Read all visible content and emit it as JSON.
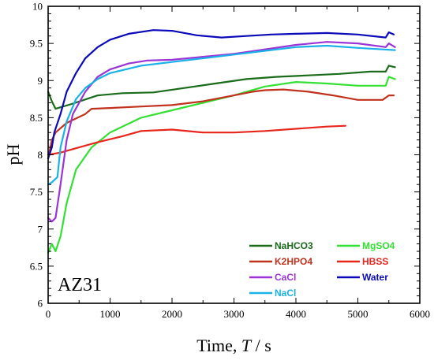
{
  "chart_data": {
    "type": "line",
    "xlabel_prefix": "Time, ",
    "xlabel_var": "T",
    "xlabel_suffix": " / s",
    "ylabel": "pH",
    "xlim": [
      0,
      6000
    ],
    "ylim": [
      6,
      10
    ],
    "xticks": [
      0,
      1000,
      2000,
      3000,
      4000,
      5000,
      6000
    ],
    "yticks": [
      6,
      6.5,
      7,
      7.5,
      8,
      8.5,
      9,
      9.5,
      10
    ],
    "grid": false,
    "legend_position": "bottom-right",
    "annotation": "AZ31",
    "series": [
      {
        "name": "NaHCO3",
        "color": "#1a6b1a",
        "points": [
          [
            0,
            8.85
          ],
          [
            60,
            8.72
          ],
          [
            120,
            8.62
          ],
          [
            400,
            8.69
          ],
          [
            800,
            8.8
          ],
          [
            1200,
            8.83
          ],
          [
            1700,
            8.84
          ],
          [
            2200,
            8.9
          ],
          [
            2700,
            8.96
          ],
          [
            3200,
            9.02
          ],
          [
            3700,
            9.05
          ],
          [
            4200,
            9.07
          ],
          [
            4700,
            9.09
          ],
          [
            5200,
            9.12
          ],
          [
            5450,
            9.12
          ],
          [
            5500,
            9.2
          ],
          [
            5600,
            9.18
          ]
        ]
      },
      {
        "name": "MgSO4",
        "color": "#33e033",
        "points": [
          [
            0,
            6.68
          ],
          [
            60,
            6.8
          ],
          [
            120,
            6.7
          ],
          [
            200,
            6.9
          ],
          [
            300,
            7.35
          ],
          [
            450,
            7.8
          ],
          [
            700,
            8.1
          ],
          [
            1000,
            8.3
          ],
          [
            1500,
            8.5
          ],
          [
            2000,
            8.6
          ],
          [
            2500,
            8.7
          ],
          [
            3000,
            8.8
          ],
          [
            3500,
            8.92
          ],
          [
            4000,
            8.98
          ],
          [
            4500,
            8.96
          ],
          [
            5000,
            8.93
          ],
          [
            5450,
            8.93
          ],
          [
            5500,
            9.05
          ],
          [
            5600,
            9.02
          ]
        ]
      },
      {
        "name": "K2HPO4",
        "color": "#c0321e",
        "points": [
          [
            0,
            7.95
          ],
          [
            60,
            8.2
          ],
          [
            120,
            8.3
          ],
          [
            300,
            8.43
          ],
          [
            600,
            8.55
          ],
          [
            700,
            8.62
          ],
          [
            1000,
            8.63
          ],
          [
            1500,
            8.65
          ],
          [
            2000,
            8.67
          ],
          [
            2500,
            8.72
          ],
          [
            3000,
            8.8
          ],
          [
            3300,
            8.85
          ],
          [
            3500,
            8.87
          ],
          [
            3800,
            8.88
          ],
          [
            4200,
            8.85
          ],
          [
            4600,
            8.8
          ],
          [
            5000,
            8.74
          ],
          [
            5400,
            8.74
          ],
          [
            5500,
            8.8
          ],
          [
            5580,
            8.8
          ]
        ]
      },
      {
        "name": "HBSS",
        "color": "#e8251b",
        "points": [
          [
            0,
            8.0
          ],
          [
            200,
            8.03
          ],
          [
            500,
            8.1
          ],
          [
            800,
            8.17
          ],
          [
            1200,
            8.25
          ],
          [
            1500,
            8.32
          ],
          [
            2000,
            8.34
          ],
          [
            2500,
            8.3
          ],
          [
            3000,
            8.3
          ],
          [
            3500,
            8.32
          ],
          [
            4000,
            8.35
          ],
          [
            4500,
            8.38
          ],
          [
            4800,
            8.39
          ]
        ]
      },
      {
        "name": "CaCl",
        "color": "#9b34d6",
        "points": [
          [
            0,
            7.15
          ],
          [
            60,
            7.1
          ],
          [
            120,
            7.15
          ],
          [
            200,
            7.6
          ],
          [
            300,
            8.2
          ],
          [
            400,
            8.55
          ],
          [
            600,
            8.85
          ],
          [
            800,
            9.05
          ],
          [
            1000,
            9.15
          ],
          [
            1300,
            9.23
          ],
          [
            1600,
            9.27
          ],
          [
            2000,
            9.28
          ],
          [
            2500,
            9.32
          ],
          [
            3000,
            9.36
          ],
          [
            3500,
            9.42
          ],
          [
            4000,
            9.48
          ],
          [
            4500,
            9.52
          ],
          [
            5000,
            9.5
          ],
          [
            5450,
            9.45
          ],
          [
            5500,
            9.5
          ],
          [
            5600,
            9.45
          ]
        ]
      },
      {
        "name": "Water",
        "color": "#0a0ab8",
        "points": [
          [
            0,
            7.95
          ],
          [
            60,
            8.1
          ],
          [
            100,
            8.3
          ],
          [
            200,
            8.55
          ],
          [
            300,
            8.85
          ],
          [
            450,
            9.1
          ],
          [
            600,
            9.3
          ],
          [
            800,
            9.45
          ],
          [
            1000,
            9.55
          ],
          [
            1300,
            9.63
          ],
          [
            1700,
            9.68
          ],
          [
            2000,
            9.67
          ],
          [
            2400,
            9.61
          ],
          [
            2800,
            9.58
          ],
          [
            3200,
            9.6
          ],
          [
            3600,
            9.62
          ],
          [
            4000,
            9.63
          ],
          [
            4500,
            9.64
          ],
          [
            5000,
            9.62
          ],
          [
            5450,
            9.58
          ],
          [
            5500,
            9.65
          ],
          [
            5580,
            9.62
          ]
        ]
      },
      {
        "name": "NaCl",
        "color": "#1ab1e8",
        "points": [
          [
            0,
            7.6
          ],
          [
            60,
            7.63
          ],
          [
            150,
            7.7
          ],
          [
            200,
            8.1
          ],
          [
            300,
            8.45
          ],
          [
            450,
            8.75
          ],
          [
            600,
            8.9
          ],
          [
            800,
            9.02
          ],
          [
            1000,
            9.1
          ],
          [
            1500,
            9.2
          ],
          [
            2000,
            9.25
          ],
          [
            2500,
            9.3
          ],
          [
            3000,
            9.35
          ],
          [
            3500,
            9.4
          ],
          [
            4000,
            9.45
          ],
          [
            4500,
            9.47
          ],
          [
            5000,
            9.44
          ],
          [
            5400,
            9.42
          ],
          [
            5600,
            9.41
          ]
        ]
      }
    ]
  }
}
